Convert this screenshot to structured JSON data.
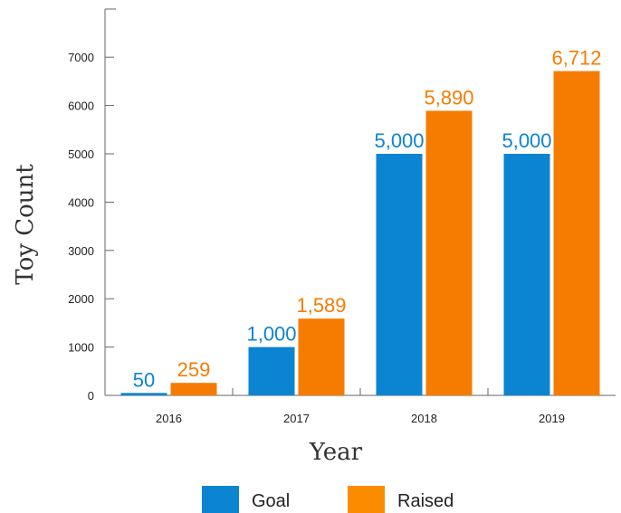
{
  "chart_data": {
    "type": "bar",
    "categories": [
      "2016",
      "2017",
      "2018",
      "2019"
    ],
    "series": [
      {
        "name": "Goal",
        "values": [
          50,
          1000,
          5000,
          5000
        ],
        "labels": [
          "50",
          "1,000",
          "5,000",
          "5,000"
        ],
        "color": "#0B84D2"
      },
      {
        "name": "Raised",
        "values": [
          259,
          1589,
          5890,
          6712
        ],
        "labels": [
          "259",
          "1,589",
          "5,890",
          "6,712"
        ],
        "color": "#F57C00"
      }
    ],
    "xlabel": "Year",
    "ylabel": "Toy Count",
    "ylim": [
      0,
      8000
    ],
    "yticks": [
      0,
      1000,
      2000,
      3000,
      4000,
      5000,
      6000,
      7000
    ],
    "grid": false,
    "legend": "bottom"
  }
}
